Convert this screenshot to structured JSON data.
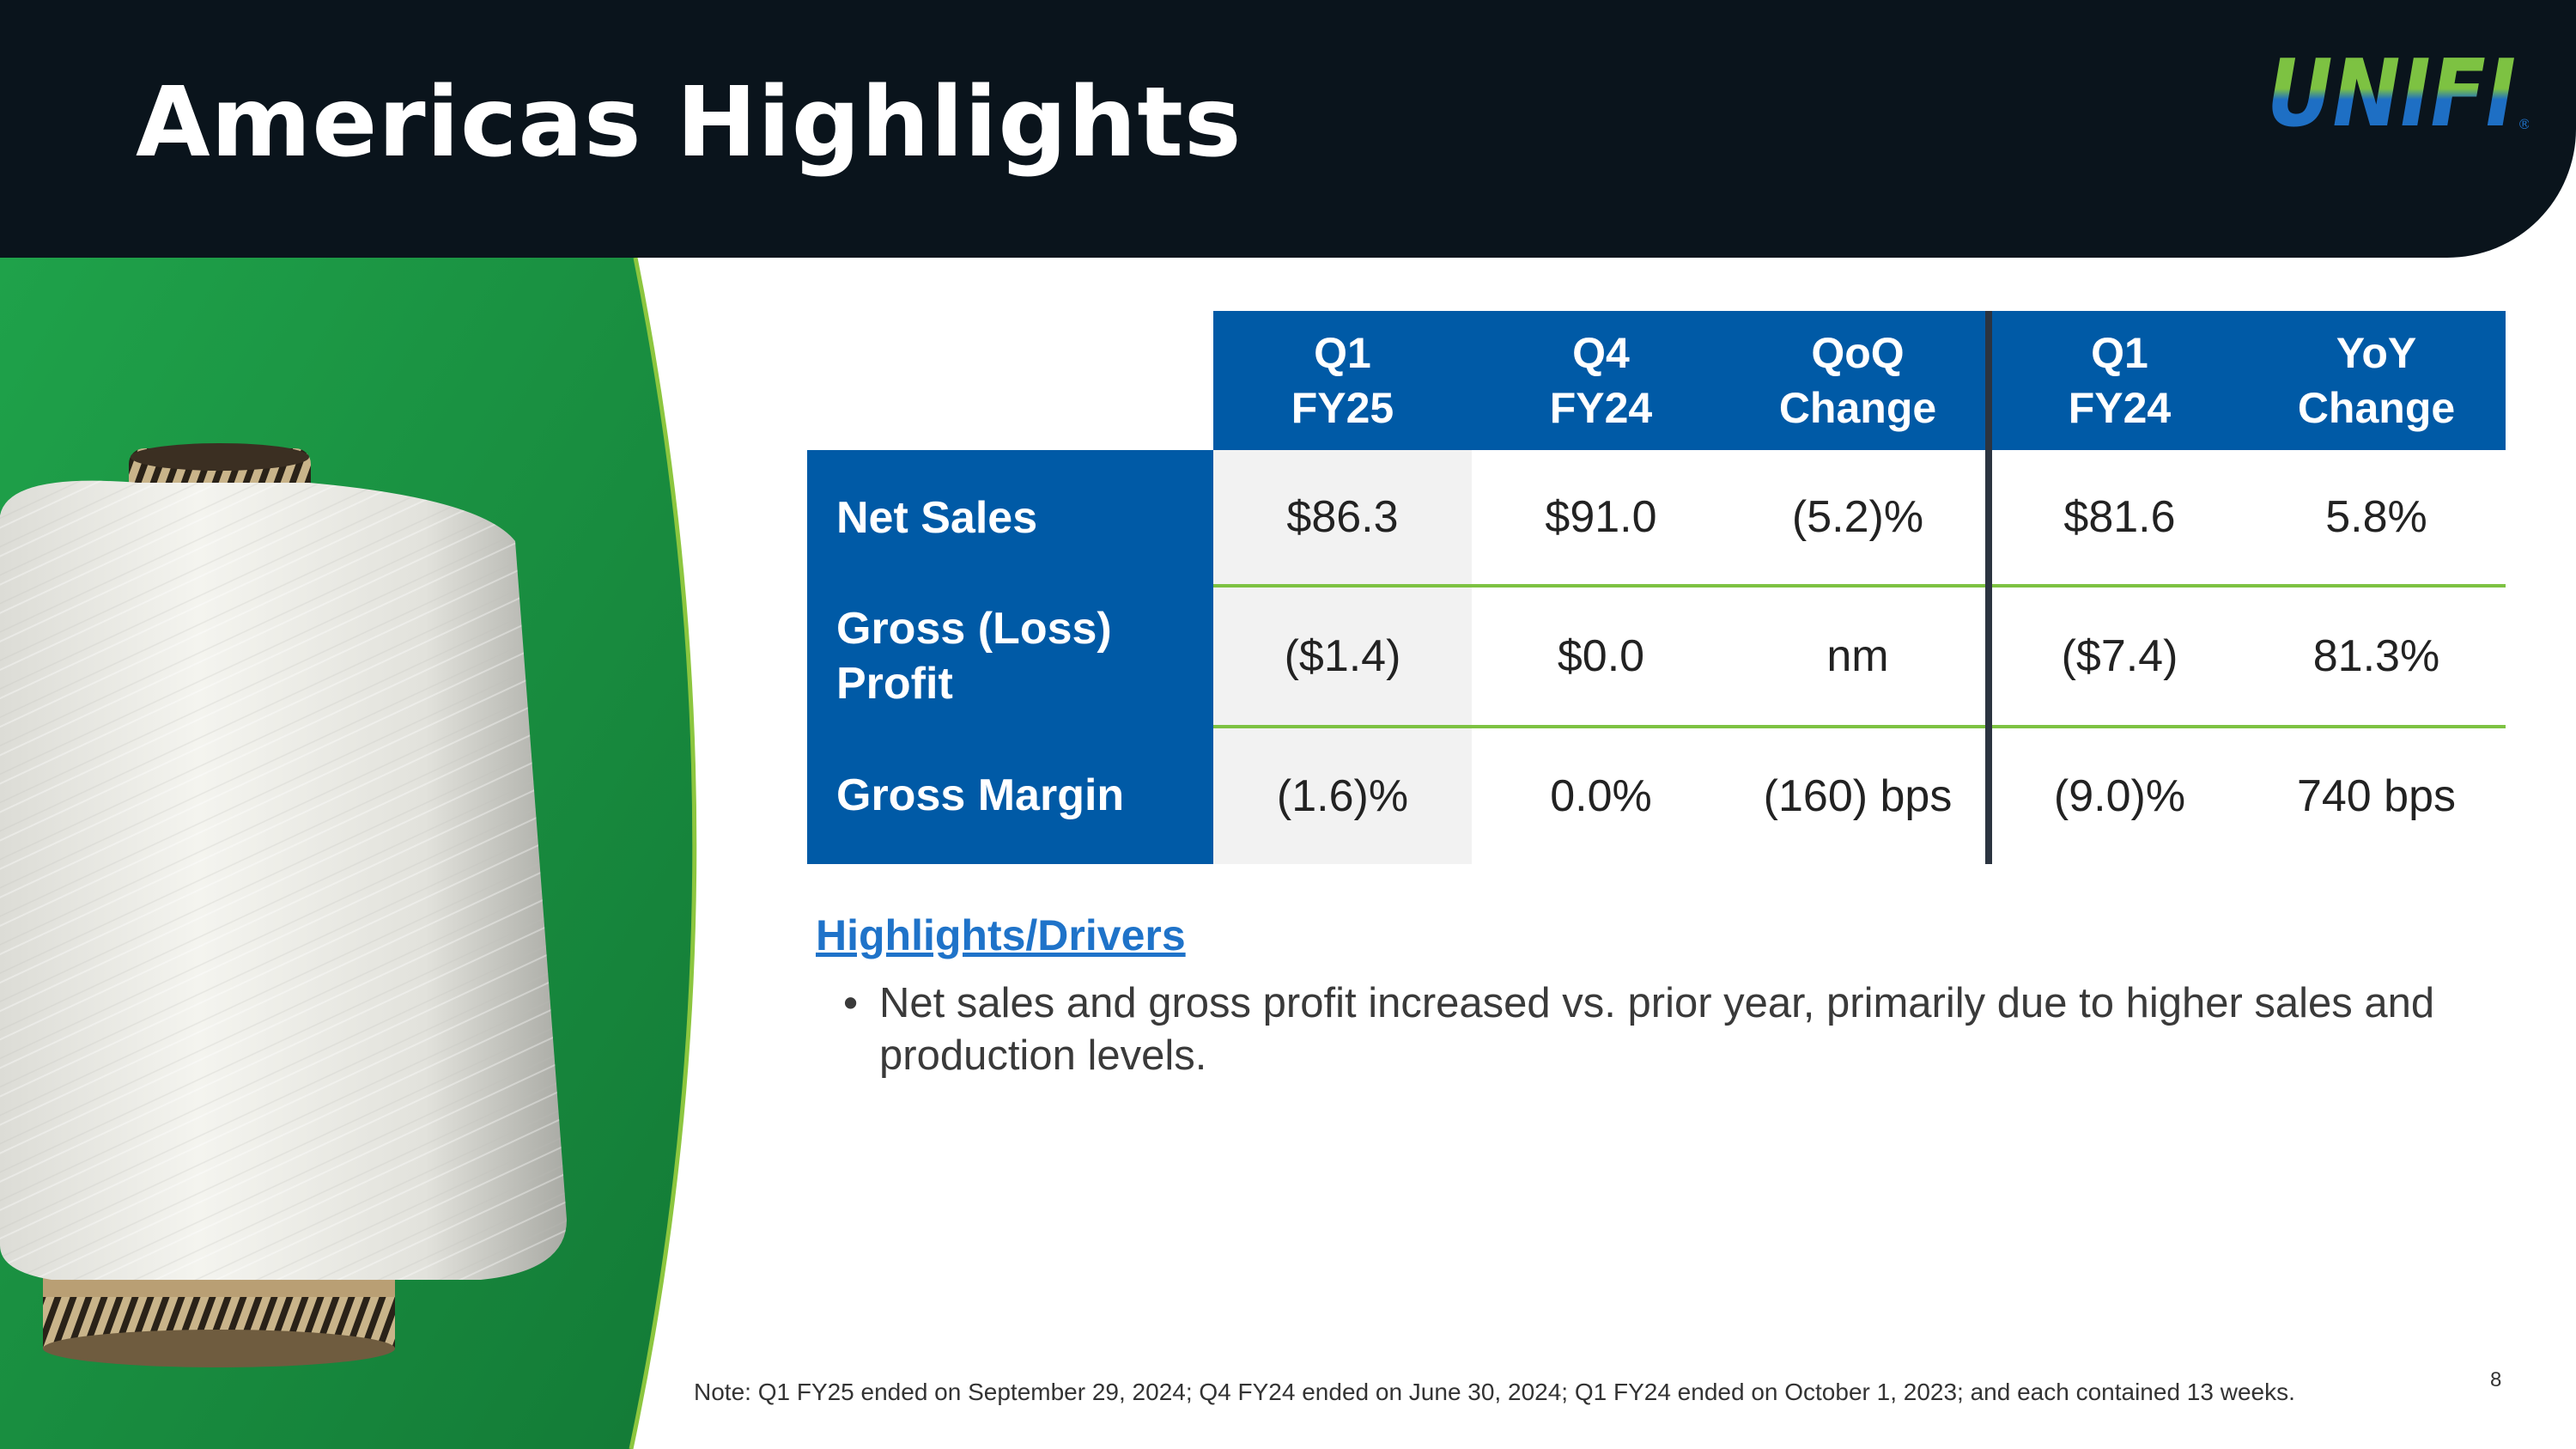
{
  "header": {
    "title": "Americas Highlights",
    "logo_text": "UNIFI",
    "logo_trademark": "®",
    "background": "#0a141c"
  },
  "colors": {
    "table_blue": "#005aa6",
    "accent_green": "#7dc242",
    "photo_green": "#1f9a44",
    "link_blue": "#1f73c9"
  },
  "table": {
    "columns": [
      {
        "line1": "Q1",
        "line2": "FY25"
      },
      {
        "line1": "Q4",
        "line2": "FY24"
      },
      {
        "line1": "QoQ",
        "line2": "Change"
      },
      {
        "line1": "Q1",
        "line2": "FY24"
      },
      {
        "line1": "YoY",
        "line2": "Change"
      }
    ],
    "rows": [
      {
        "label": "Net Sales",
        "values": [
          "$86.3",
          "$91.0",
          "(5.2)%",
          "$81.6",
          "5.8%"
        ]
      },
      {
        "label_line1": "Gross (Loss)",
        "label_line2": "Profit",
        "values": [
          "($1.4)",
          "$0.0",
          "nm",
          "($7.4)",
          "81.3%"
        ]
      },
      {
        "label": "Gross Margin",
        "values": [
          "(1.6)%",
          "0.0%",
          "(160) bps",
          "(9.0)%",
          "740 bps"
        ]
      }
    ]
  },
  "drivers": {
    "title": "Highlights/Drivers",
    "bullets": [
      "Net sales and gross profit increased vs. prior year, primarily due to higher sales and production levels."
    ]
  },
  "footer": {
    "note": "Note: Q1 FY25 ended on September 29, 2024; Q4 FY24 ended on June 30, 2024; Q1 FY24 ended on October 1, 2023; and each contained 13 weeks.",
    "page_number": "8"
  }
}
